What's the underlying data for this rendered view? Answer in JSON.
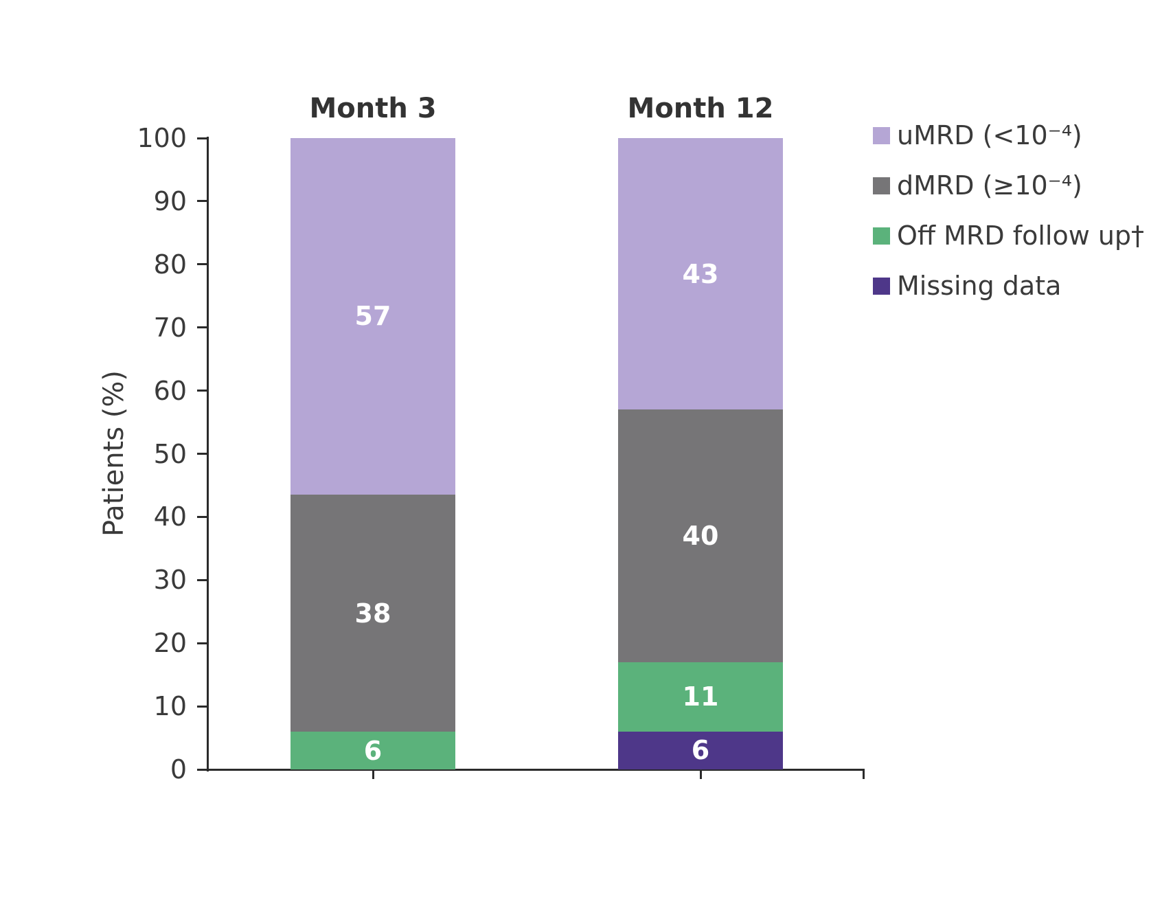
{
  "chart_data": {
    "type": "bar",
    "stacked": true,
    "ylabel": "Patients (%)",
    "ylim": [
      0,
      100
    ],
    "yticks": [
      0,
      10,
      20,
      30,
      40,
      50,
      60,
      70,
      80,
      90,
      100
    ],
    "grid": false,
    "legend_position": "right",
    "categories": [
      "Month 3",
      "Month 12"
    ],
    "series": [
      {
        "name": "uMRD (<10⁻⁴)",
        "color": "#b5a6d5",
        "values": [
          57,
          43
        ]
      },
      {
        "name": "dMRD (≥10⁻⁴)",
        "color": "#767577",
        "values": [
          38,
          40
        ]
      },
      {
        "name": "Off MRD follow up†",
        "color": "#5bb27b",
        "values": [
          6,
          11
        ]
      },
      {
        "name": "Missing data",
        "color": "#4e3789",
        "values": [
          null,
          6
        ]
      }
    ],
    "bar_label_color": "#ffffff"
  }
}
